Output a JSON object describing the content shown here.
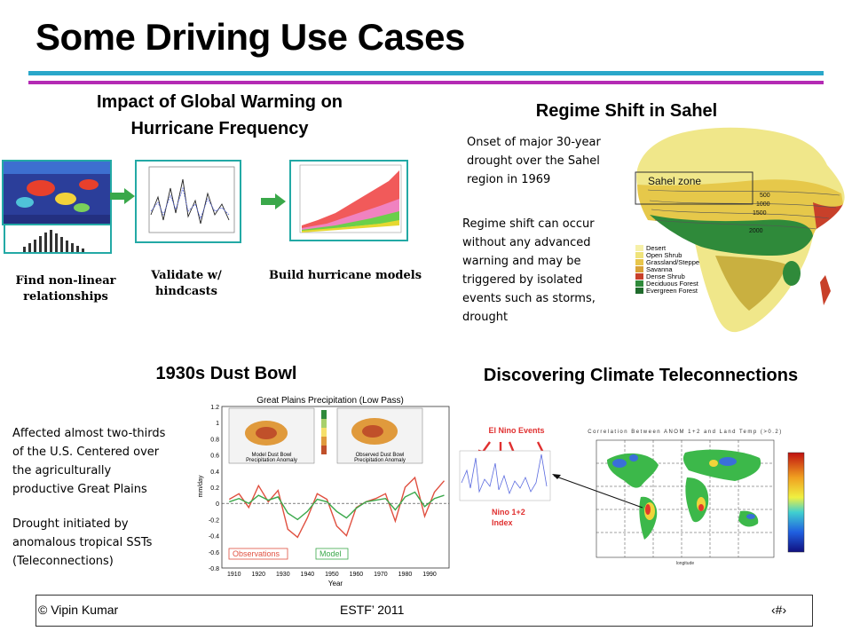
{
  "slide": {
    "title": "Some Driving Use Cases",
    "hurricane": {
      "heading_line1": "Impact of Global Warming on",
      "heading_line2": "Hurricane Frequency",
      "step1_line1": "Find non-linear",
      "step1_line2": "relationships",
      "step2_line1": "Validate w/",
      "step2_line2": "hindcasts",
      "step3": "Build hurricane models"
    },
    "sahel": {
      "heading": "Regime Shift in Sahel",
      "text1_lines": [
        "Onset of major 30-year",
        "drought over the Sahel",
        "region in 1969"
      ],
      "text2_lines": [
        "Regime shift can occur",
        "without any advanced",
        "warning and may be",
        "triggered by isolated",
        "events such as storms,",
        "drought"
      ],
      "map_zone_label": "Sahel zone",
      "contours": [
        "500",
        "1000",
        "1500",
        "2000"
      ],
      "legend": [
        "Desert",
        "Open Shrub",
        "Grassland/Steppe",
        "Savanna",
        "Dense Shrub",
        "Deciduous Forest",
        "Evergreen Forest"
      ],
      "legend_colors": [
        "#f6f0a8",
        "#efe37a",
        "#e8c64b",
        "#d9a236",
        "#c8402a",
        "#2f8a3a",
        "#1f6b2c"
      ]
    },
    "dustbowl": {
      "heading": "1930s Dust Bowl",
      "text1_lines": [
        "Affected almost two-thirds",
        "of the U.S. Centered over",
        "the agriculturally",
        "productive Great Plains"
      ],
      "text2_lines": [
        "Drought initiated by",
        "anomalous tropical SSTs",
        "(Teleconnections)"
      ],
      "chart_title": "Great Plains Precipitation (Low Pass)",
      "map1_label_l1": "Model Dust Bowl",
      "map1_label_l2": "Precipitation Anomaly",
      "map2_label_l1": "Observed Dust Bowl",
      "map2_label_l2": "Precipitation Anomaly",
      "ylabel": "mm/day",
      "xlabel": "Year",
      "yticks": [
        "1.2",
        "1",
        "0.8",
        "0.6",
        "0.4",
        "0.2",
        "0",
        "-0.2",
        "-0.4",
        "-0.6",
        "-0.8"
      ],
      "xticks": [
        "1910",
        "1920",
        "1930",
        "1940",
        "1950",
        "1960",
        "1970",
        "1980",
        "1990"
      ],
      "legend_obs": "Observations",
      "legend_model": "Model"
    },
    "teleconn": {
      "heading": "Discovering Climate Teleconnections",
      "elnino_label": "El Nino Events",
      "index_label_l1": "Nino 1+2",
      "index_label_l2": "Index",
      "map_title": "Correlation Between ANOM 1+2 and Land Temp (>0.2)",
      "lon_label": "longitude"
    },
    "footer": {
      "author": "© Vipin Kumar",
      "event": "ESTF’ 2011",
      "page": "‹#›"
    }
  },
  "chart_data": {
    "type": "line",
    "title": "Great Plains Precipitation (Low Pass)",
    "xlabel": "Year",
    "ylabel": "mm/day",
    "xlim": [
      1905,
      1998
    ],
    "ylim": [
      -0.8,
      1.2
    ],
    "series": [
      {
        "name": "Observations",
        "x": [
          1908,
          1912,
          1916,
          1920,
          1924,
          1928,
          1932,
          1936,
          1940,
          1944,
          1948,
          1952,
          1956,
          1960,
          1964,
          1968,
          1972,
          1976,
          1980,
          1984,
          1988,
          1992,
          1996
        ],
        "values": [
          0.05,
          0.12,
          -0.05,
          0.22,
          0.02,
          0.16,
          -0.32,
          -0.42,
          -0.18,
          0.12,
          0.05,
          -0.28,
          -0.4,
          -0.05,
          0.02,
          0.06,
          0.12,
          -0.22,
          0.2,
          0.32,
          -0.16,
          0.14,
          0.28
        ]
      },
      {
        "name": "Model",
        "x": [
          1908,
          1912,
          1916,
          1920,
          1924,
          1928,
          1932,
          1936,
          1940,
          1944,
          1948,
          1952,
          1956,
          1960,
          1964,
          1968,
          1972,
          1976,
          1980,
          1984,
          1988,
          1992,
          1996
        ],
        "values": [
          0.02,
          0.06,
          0.0,
          0.1,
          0.04,
          0.08,
          -0.12,
          -0.2,
          -0.1,
          0.05,
          0.02,
          -0.1,
          -0.18,
          -0.06,
          0.02,
          0.04,
          0.06,
          -0.08,
          0.08,
          0.14,
          -0.04,
          0.06,
          0.1
        ]
      }
    ]
  }
}
